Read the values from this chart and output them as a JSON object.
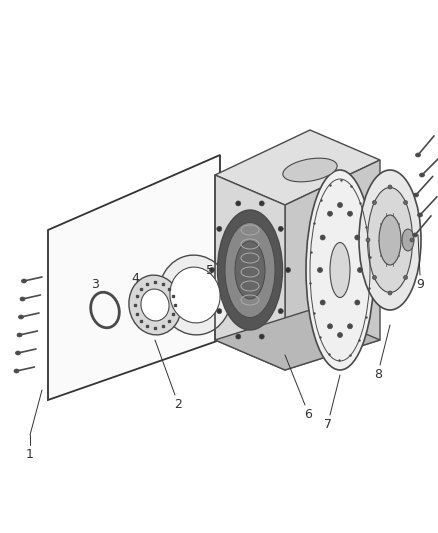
{
  "bg_color": "#ffffff",
  "line_color": "#4a4a4a",
  "dark_line": "#333333",
  "light_fill": "#f2f2f2",
  "mid_fill": "#d8d8d8",
  "dark_fill": "#aaaaaa",
  "label_color": "#333333",
  "fig_width": 4.38,
  "fig_height": 5.33,
  "dpi": 100
}
